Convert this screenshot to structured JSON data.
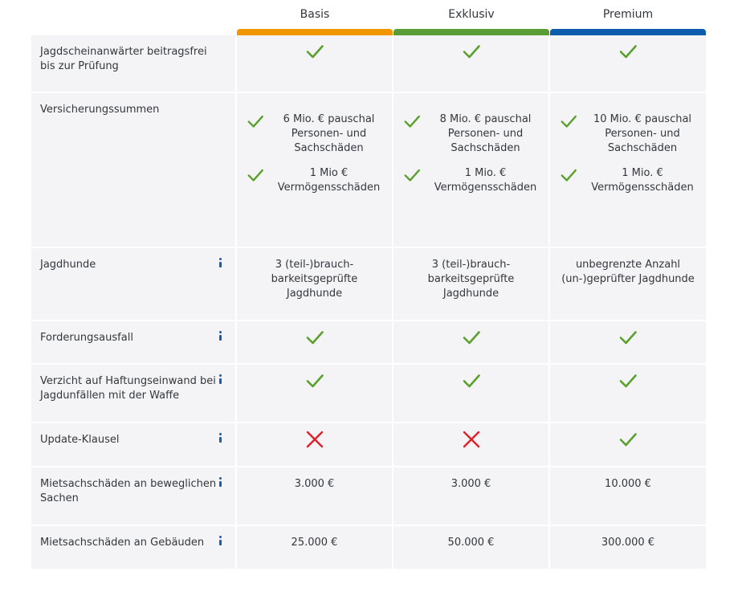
{
  "plans": [
    {
      "name": "Basis",
      "color": "#f09600"
    },
    {
      "name": "Exklusiv",
      "color": "#5a9c35"
    },
    {
      "name": "Premium",
      "color": "#0d5cae"
    }
  ],
  "colors": {
    "check": "#5aa02c",
    "cross": "#e2202a",
    "info": "#1a5eab",
    "cell_bg": "#f4f4f6"
  },
  "rows": [
    {
      "label": "Jagdscheinanwärter beitragsfrei bis zur Prüfung",
      "has_info": false,
      "values": [
        "check",
        "check",
        "check"
      ]
    },
    {
      "label": "Versicherungssummen",
      "has_info": false,
      "values": [
        [
          {
            "text": "6 Mio. € pauschal Personen- und Sachschäden"
          },
          {
            "text": "1 Mio € Vermögensschäden"
          }
        ],
        [
          {
            "text": "8 Mio. € pauschal Personen- und Sachschäden"
          },
          {
            "text": "1 Mio. € Vermögensschäden"
          }
        ],
        [
          {
            "text": "10 Mio. € pauschal Personen- und Sachschäden"
          },
          {
            "text": "1 Mio. € Vermögensschäden"
          }
        ]
      ]
    },
    {
      "label": "Jagdhunde",
      "has_info": true,
      "values": [
        "3 (teil-)brauch-barkeitsgeprüfte Jagdhunde",
        "3 (teil-)brauch-barkeitsgeprüfte Jagdhunde",
        "unbegrenzte Anzahl (un-)geprüfter Jagdhunde"
      ]
    },
    {
      "label": "Forderungsausfall",
      "has_info": true,
      "values": [
        "check",
        "check",
        "check"
      ]
    },
    {
      "label": "Verzicht auf Haftungseinwand bei Jagdunfällen mit der Waffe",
      "has_info": true,
      "values": [
        "check",
        "check",
        "check"
      ]
    },
    {
      "label": "Update-Klausel",
      "has_info": true,
      "values": [
        "cross",
        "cross",
        "check"
      ]
    },
    {
      "label": "Mietsachschäden an beweglichen Sachen",
      "has_info": true,
      "values": [
        "3.000 €",
        "3.000 €",
        "10.000 €"
      ]
    },
    {
      "label": "Mietsachschäden an Gebäuden",
      "has_info": true,
      "values": [
        "25.000 €",
        "50.000 €",
        "300.000 €"
      ]
    }
  ]
}
